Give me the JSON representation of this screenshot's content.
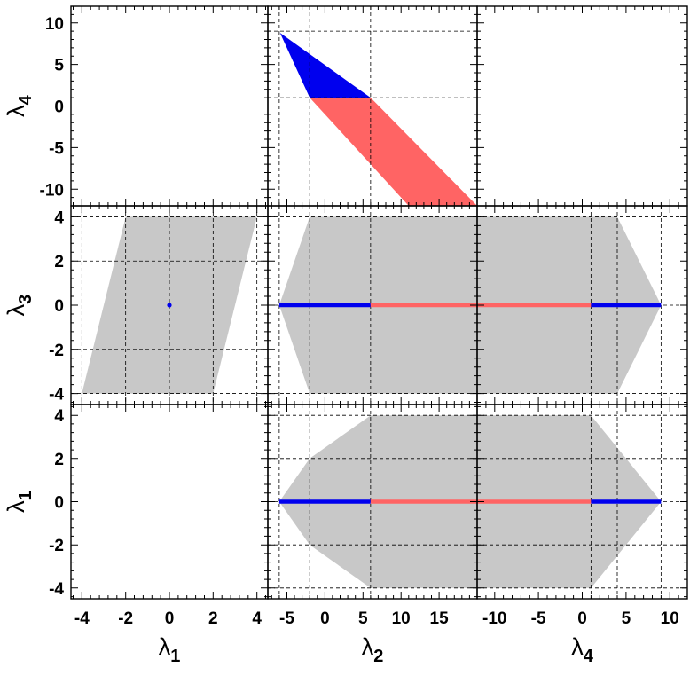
{
  "chart_data": {
    "type": "corner-plot",
    "grid": true,
    "colors": {
      "region_gray": "#c8c8c8",
      "region_blue": "#0000ee",
      "region_red": "#ff6464",
      "grid_dash": "#000000"
    },
    "axis_labels": {
      "lambda1": {
        "symbol": "λ",
        "subscript": "1"
      },
      "lambda2": {
        "symbol": "λ",
        "subscript": "2"
      },
      "lambda3": {
        "symbol": "λ",
        "subscript": "3"
      },
      "lambda4": {
        "symbol": "λ",
        "subscript": "4"
      }
    },
    "column_axes": [
      {
        "label_key": "lambda1",
        "xlim": [
          -4.5,
          4.5
        ],
        "ticks": [
          -4,
          -2,
          0,
          2,
          4
        ],
        "tick_labels": [
          "-4",
          "-2",
          "0",
          "2",
          "4"
        ],
        "grid": [
          -4,
          -2,
          0,
          2,
          4
        ]
      },
      {
        "label_key": "lambda2",
        "xlim": [
          -7.5,
          20
        ],
        "ticks": [
          -5,
          0,
          5,
          10,
          15
        ],
        "tick_labels": [
          "-5",
          "0",
          "5",
          "10",
          "15"
        ],
        "grid": [
          -6,
          -2,
          6,
          19
        ]
      },
      {
        "label_key": "lambda4",
        "xlim": [
          -12,
          12
        ],
        "ticks": [
          -10,
          -5,
          0,
          5,
          10
        ],
        "tick_labels": [
          "-10",
          "-5",
          "0",
          "5",
          "10"
        ],
        "grid": [
          1,
          4,
          9
        ]
      }
    ],
    "row_axes": [
      {
        "label_key": "lambda4",
        "ylim": [
          -12,
          12
        ],
        "ticks": [
          10,
          5,
          0,
          -5,
          -10
        ],
        "tick_labels": [
          "10",
          "5",
          "0",
          "-5",
          "-10"
        ]
      },
      {
        "label_key": "lambda3",
        "ylim": [
          -4.5,
          4.5
        ],
        "ticks": [
          4,
          2,
          0,
          -2,
          -4
        ],
        "tick_labels": [
          "4",
          "2",
          "0",
          "-2",
          "-4"
        ]
      },
      {
        "label_key": "lambda1",
        "ylim": [
          -4.5,
          4.5
        ],
        "ticks": [
          4,
          2,
          0,
          -2,
          -4
        ],
        "tick_labels": [
          "4",
          "2",
          "0",
          "-2",
          "-4"
        ]
      }
    ],
    "panels": [
      {
        "row": 0,
        "col": 0,
        "x_label": "lambda1",
        "y_label": "lambda4",
        "hgrid": [],
        "vgrid": [],
        "regions": [],
        "segments": [],
        "points": []
      },
      {
        "row": 0,
        "col": 1,
        "x_label": "lambda2",
        "y_label": "lambda4",
        "hgrid": [
          9,
          1
        ],
        "vgrid": [
          -6,
          -2,
          6
        ],
        "regions": [
          {
            "color": "region_blue",
            "points": [
              [
                -5.9,
                8.8
              ],
              [
                6.0,
                1.0
              ],
              [
                -2.0,
                1.0
              ]
            ]
          },
          {
            "color": "region_red",
            "points": [
              [
                -2.0,
                1.0
              ],
              [
                6.0,
                1.0
              ],
              [
                20.0,
                -12.0
              ],
              [
                11.0,
                -12.0
              ]
            ]
          }
        ],
        "segments": [],
        "points": []
      },
      {
        "row": 0,
        "col": 2,
        "x_label": "lambda4",
        "y_label": "lambda4",
        "hgrid": [],
        "vgrid": [],
        "regions": [],
        "segments": [],
        "points": []
      },
      {
        "row": 1,
        "col": 0,
        "x_label": "lambda1",
        "y_label": "lambda3",
        "hgrid": [
          4,
          2,
          -2,
          -4
        ],
        "vgrid": [
          -4,
          -2,
          0,
          2,
          4
        ],
        "regions": [
          {
            "color": "region_gray",
            "points": [
              [
                -2,
                4
              ],
              [
                4,
                4
              ],
              [
                2,
                -4
              ],
              [
                -4,
                -4
              ]
            ]
          }
        ],
        "segments": [],
        "points": [
          {
            "x": 0,
            "y": 0,
            "color": "region_blue"
          }
        ]
      },
      {
        "row": 1,
        "col": 1,
        "x_label": "lambda2",
        "y_label": "lambda3",
        "hgrid": [
          4,
          0,
          -4
        ],
        "vgrid": [
          -6,
          -2,
          6
        ],
        "regions": [
          {
            "color": "region_gray",
            "points": [
              [
                -2,
                4
              ],
              [
                20,
                4
              ],
              [
                20,
                -4
              ],
              [
                -2,
                -4
              ],
              [
                -6,
                0
              ]
            ]
          }
        ],
        "segments": [
          {
            "color": "region_blue",
            "from": [
              -6,
              0
            ],
            "to": [
              6,
              0
            ]
          },
          {
            "color": "region_red",
            "from": [
              6,
              0
            ],
            "to": [
              20,
              0
            ]
          }
        ],
        "points": []
      },
      {
        "row": 1,
        "col": 2,
        "x_label": "lambda4",
        "y_label": "lambda3",
        "hgrid": [
          4,
          0,
          -4
        ],
        "vgrid": [
          1,
          4,
          9
        ],
        "regions": [
          {
            "color": "region_gray",
            "points": [
              [
                -12,
                4
              ],
              [
                4,
                4
              ],
              [
                9,
                0
              ],
              [
                4,
                -4
              ],
              [
                -12,
                -4
              ]
            ]
          }
        ],
        "segments": [
          {
            "color": "region_red",
            "from": [
              -12,
              0
            ],
            "to": [
              1,
              0
            ]
          },
          {
            "color": "region_blue",
            "from": [
              1,
              0
            ],
            "to": [
              9,
              0
            ]
          }
        ],
        "points": []
      },
      {
        "row": 2,
        "col": 0,
        "x_label": "lambda1",
        "y_label": "lambda1",
        "hgrid": [],
        "vgrid": [],
        "regions": [],
        "segments": [],
        "points": []
      },
      {
        "row": 2,
        "col": 1,
        "x_label": "lambda2",
        "y_label": "lambda1",
        "hgrid": [
          4,
          2,
          0,
          -2,
          -4
        ],
        "vgrid": [
          -6,
          -2,
          6
        ],
        "regions": [
          {
            "color": "region_gray",
            "points": [
              [
                6,
                4
              ],
              [
                20,
                4
              ],
              [
                20,
                -4
              ],
              [
                6,
                -4
              ],
              [
                -2,
                -2
              ],
              [
                -6,
                0
              ],
              [
                -2,
                2
              ]
            ]
          }
        ],
        "segments": [
          {
            "color": "region_blue",
            "from": [
              -6,
              0
            ],
            "to": [
              6,
              0
            ]
          },
          {
            "color": "region_red",
            "from": [
              6,
              0
            ],
            "to": [
              20,
              0
            ]
          }
        ],
        "points": []
      },
      {
        "row": 2,
        "col": 2,
        "x_label": "lambda4",
        "y_label": "lambda1",
        "hgrid": [
          4,
          2,
          0,
          -2,
          -4
        ],
        "vgrid": [
          1,
          4,
          9
        ],
        "regions": [
          {
            "color": "region_gray",
            "points": [
              [
                -12,
                4
              ],
              [
                1,
                4
              ],
              [
                9,
                0
              ],
              [
                1,
                -4
              ],
              [
                -12,
                -4
              ]
            ]
          }
        ],
        "segments": [
          {
            "color": "region_red",
            "from": [
              -12,
              0
            ],
            "to": [
              1,
              0
            ]
          },
          {
            "color": "region_blue",
            "from": [
              1,
              0
            ],
            "to": [
              9,
              0
            ]
          }
        ],
        "points": []
      }
    ]
  }
}
